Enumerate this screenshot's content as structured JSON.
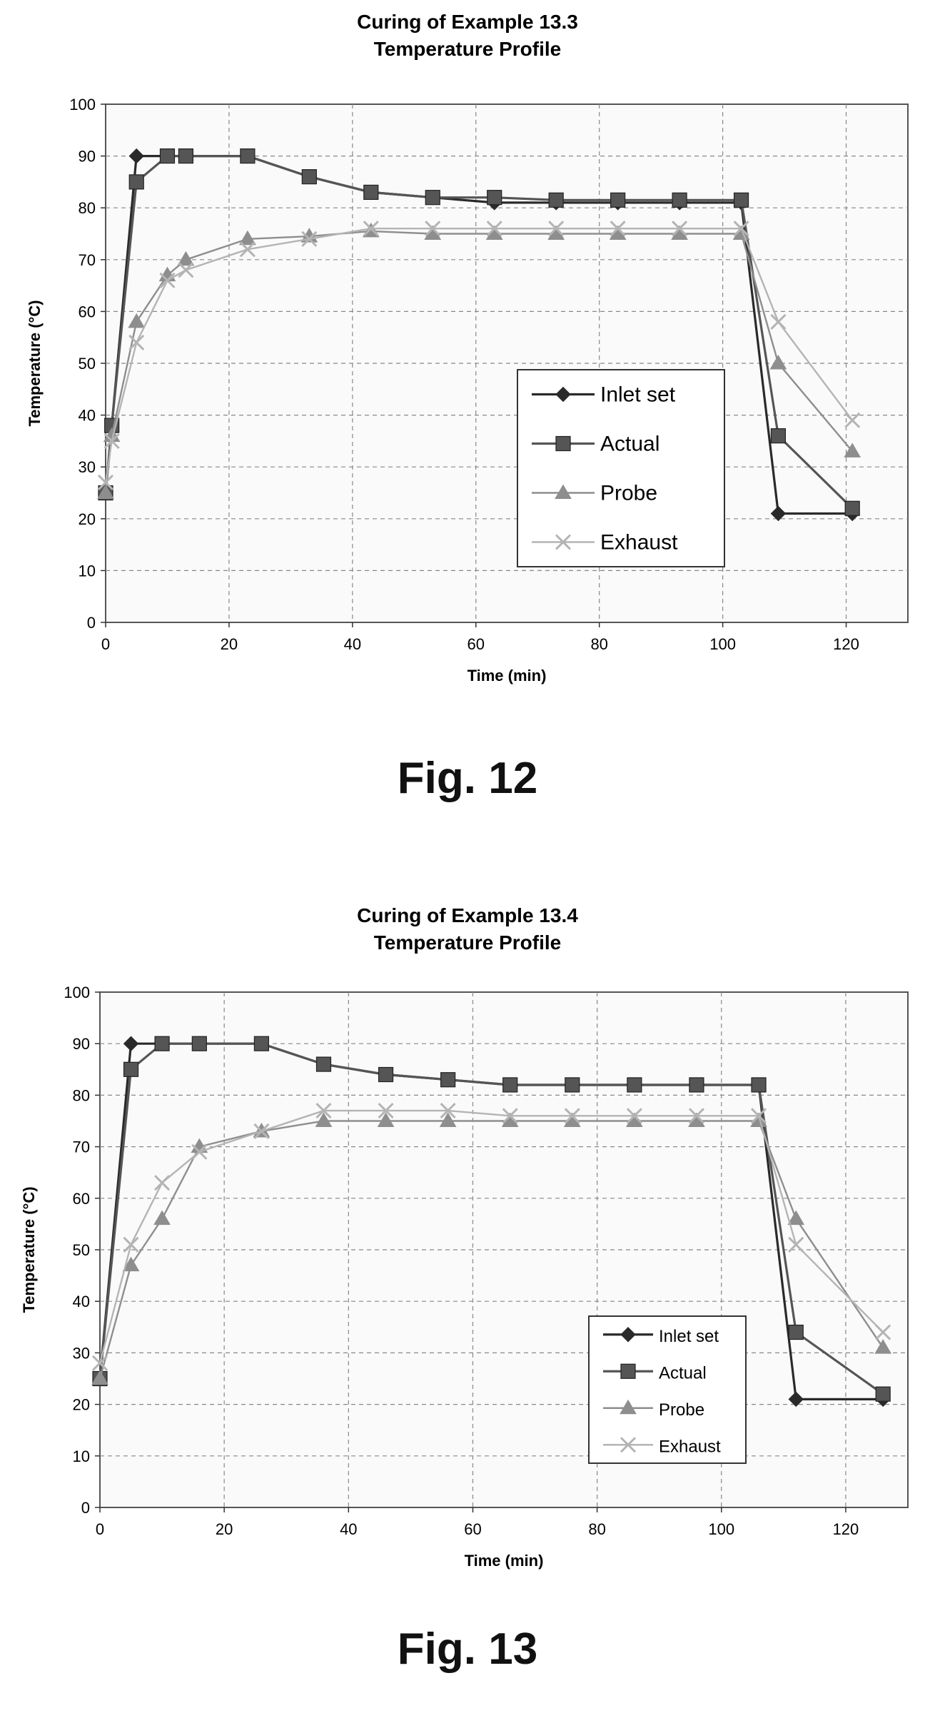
{
  "chart_data": [
    {
      "type": "line",
      "title": "Curing of Example 13.3",
      "subtitle": "Temperature Profile",
      "xlabel": "Time (min)",
      "ylabel": "Temperature (°C)",
      "xlim": [
        0,
        130
      ],
      "ylim": [
        0,
        100
      ],
      "xticks": [
        0,
        20,
        40,
        60,
        80,
        100,
        120
      ],
      "yticks": [
        0,
        10,
        20,
        30,
        40,
        50,
        60,
        70,
        80,
        90,
        100
      ],
      "grid": true,
      "legend_position": "lower-right",
      "series": [
        {
          "name": "Inlet set",
          "marker": "diamond",
          "x": [
            0,
            5,
            10,
            13,
            23,
            33,
            43,
            53,
            63,
            73,
            83,
            93,
            103,
            109,
            121
          ],
          "y": [
            25,
            90,
            90,
            90,
            90,
            86,
            83,
            82,
            81,
            81,
            81,
            81,
            81,
            21,
            21
          ]
        },
        {
          "name": "Actual",
          "marker": "square",
          "x": [
            0,
            1,
            5,
            10,
            13,
            23,
            33,
            43,
            53,
            63,
            73,
            83,
            93,
            103,
            109,
            121
          ],
          "y": [
            25,
            38,
            85,
            90,
            90,
            90,
            86,
            83,
            82,
            82,
            81.5,
            81.5,
            81.5,
            81.5,
            36,
            22
          ]
        },
        {
          "name": "Probe",
          "marker": "triangle",
          "x": [
            0,
            1,
            5,
            10,
            13,
            23,
            33,
            43,
            53,
            63,
            73,
            83,
            93,
            103,
            109,
            121
          ],
          "y": [
            25,
            36,
            58,
            67,
            70,
            74,
            74.5,
            75.5,
            75,
            75,
            75,
            75,
            75,
            75,
            50,
            33
          ]
        },
        {
          "name": "Exhaust",
          "marker": "x",
          "x": [
            0,
            1,
            5,
            10,
            13,
            23,
            33,
            43,
            53,
            63,
            73,
            83,
            93,
            103,
            109,
            121
          ],
          "y": [
            27,
            35,
            54,
            66,
            68,
            72,
            74,
            76,
            76,
            76,
            76,
            76,
            76,
            76,
            58,
            39
          ]
        }
      ],
      "figure_label": "Fig. 12"
    },
    {
      "type": "line",
      "title": "Curing of Example 13.4",
      "subtitle": "Temperature Profile",
      "xlabel": "Time (min)",
      "ylabel": "Temperature (°C)",
      "xlim": [
        0,
        130
      ],
      "ylim": [
        0,
        100
      ],
      "xticks": [
        0,
        20,
        40,
        60,
        80,
        100,
        120
      ],
      "yticks": [
        0,
        10,
        20,
        30,
        40,
        50,
        60,
        70,
        80,
        90,
        100
      ],
      "grid": true,
      "legend_position": "lower-right",
      "series": [
        {
          "name": "Inlet set",
          "marker": "diamond",
          "x": [
            0,
            5,
            10,
            16,
            26,
            36,
            46,
            56,
            66,
            76,
            86,
            96,
            106,
            112,
            126
          ],
          "y": [
            25,
            90,
            90,
            90,
            90,
            86,
            84,
            83,
            82,
            82,
            82,
            82,
            82,
            21,
            21
          ]
        },
        {
          "name": "Actual",
          "marker": "square",
          "x": [
            0,
            5,
            10,
            16,
            26,
            36,
            46,
            56,
            66,
            76,
            86,
            96,
            106,
            112,
            126
          ],
          "y": [
            25,
            85,
            90,
            90,
            90,
            86,
            84,
            83,
            82,
            82,
            82,
            82,
            82,
            34,
            22
          ]
        },
        {
          "name": "Probe",
          "marker": "triangle",
          "x": [
            0,
            5,
            10,
            16,
            26,
            36,
            46,
            56,
            66,
            76,
            86,
            96,
            106,
            112,
            126
          ],
          "y": [
            25,
            47,
            56,
            70,
            73,
            75,
            75,
            75,
            75,
            75,
            75,
            75,
            75,
            56,
            31
          ]
        },
        {
          "name": "Exhaust",
          "marker": "x",
          "x": [
            0,
            5,
            10,
            16,
            26,
            36,
            46,
            56,
            66,
            76,
            86,
            96,
            106,
            112,
            126
          ],
          "y": [
            28,
            51,
            63,
            69,
            73,
            77,
            77,
            77,
            76,
            76,
            76,
            76,
            76,
            51,
            34
          ]
        }
      ],
      "figure_label": "Fig. 13"
    }
  ]
}
